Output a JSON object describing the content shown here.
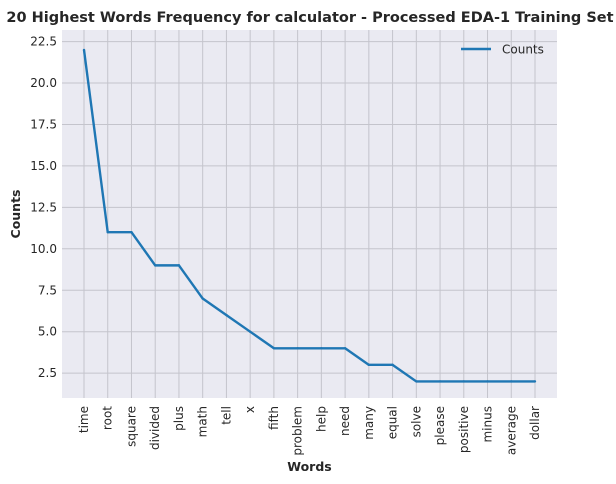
{
  "chart_data": {
    "type": "line",
    "title": "20 Highest Words Frequency for calculator - Processed EDA-1 Training Set",
    "xlabel": "Words",
    "ylabel": "Counts",
    "categories": [
      "time",
      "root",
      "square",
      "divided",
      "plus",
      "math",
      "tell",
      "x",
      "fifth",
      "problem",
      "help",
      "need",
      "many",
      "equal",
      "solve",
      "please",
      "positive",
      "minus",
      "average",
      "dollar"
    ],
    "series": [
      {
        "name": "Counts",
        "color": "#1f77b4",
        "values": [
          22,
          11,
          11,
          9,
          9,
          7,
          6,
          5,
          4,
          4,
          4,
          4,
          3,
          3,
          2,
          2,
          2,
          2,
          2,
          2
        ]
      }
    ],
    "ylim": [
      1,
      23.2
    ],
    "yticks": [
      2.5,
      5.0,
      7.5,
      10.0,
      12.5,
      15.0,
      17.5,
      20.0,
      22.5
    ],
    "ytick_labels": [
      "2.5",
      "5.0",
      "7.5",
      "10.0",
      "12.5",
      "15.0",
      "17.5",
      "20.0",
      "22.5"
    ],
    "grid": true,
    "legend_position": "top-right",
    "colors": {
      "background": "#eaeaf2",
      "grid": "#c4c4cc",
      "line": "#1f77b4"
    }
  }
}
